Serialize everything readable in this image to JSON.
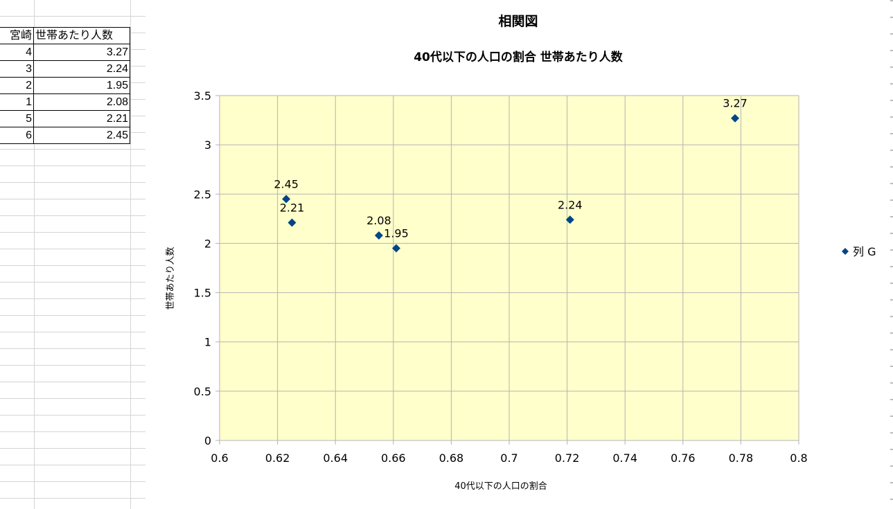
{
  "sheet": {
    "header": [
      "宮崎",
      "世帯あたり人数"
    ],
    "rows": [
      [
        "4",
        "3.27"
      ],
      [
        "3",
        "2.24"
      ],
      [
        "2",
        "1.95"
      ],
      [
        "1",
        "2.08"
      ],
      [
        "5",
        "2.21"
      ],
      [
        "6",
        "2.45"
      ]
    ]
  },
  "chart_data": {
    "type": "scatter",
    "title": "相関図",
    "subtitle": "40代以下の人口の割合 世帯あたり人数",
    "xlabel": "40代以下の人口の割合",
    "ylabel": "世帯あたり人数",
    "xlim": [
      0.6,
      0.8
    ],
    "ylim": [
      0,
      3.5
    ],
    "xticks": [
      "0.6",
      "0.62",
      "0.64",
      "0.66",
      "0.68",
      "0.7",
      "0.72",
      "0.74",
      "0.76",
      "0.78",
      "0.8"
    ],
    "yticks": [
      "0",
      "0.5",
      "1",
      "1.5",
      "2",
      "2.5",
      "3",
      "3.5"
    ],
    "grid": true,
    "plot_background": "#ffffcc",
    "legend_position": "right",
    "series": [
      {
        "name": "列 G",
        "color": "#004586",
        "marker": "diamond",
        "points": [
          {
            "x": 0.778,
            "y": 3.27,
            "label": "3.27"
          },
          {
            "x": 0.721,
            "y": 2.24,
            "label": "2.24"
          },
          {
            "x": 0.661,
            "y": 1.95,
            "label": "1.95"
          },
          {
            "x": 0.655,
            "y": 2.08,
            "label": "2.08"
          },
          {
            "x": 0.625,
            "y": 2.21,
            "label": "2.21"
          },
          {
            "x": 0.623,
            "y": 2.45,
            "label": "2.45"
          }
        ]
      }
    ]
  }
}
